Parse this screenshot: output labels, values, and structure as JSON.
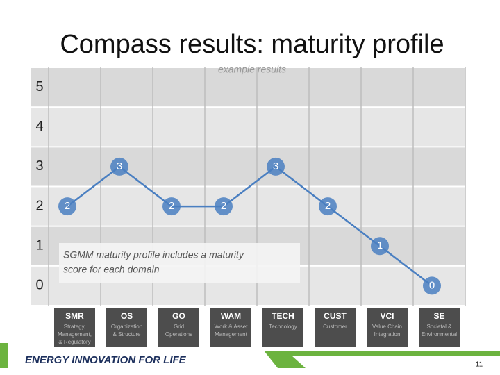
{
  "chart_data": {
    "type": "line",
    "title": "Compass results: maturity profile",
    "subtitle": "example results",
    "categories": [
      "SMR",
      "OS",
      "GO",
      "WAM",
      "TECH",
      "CUST",
      "VCI",
      "SE"
    ],
    "category_descriptions": [
      [
        "Strategy,",
        "Management,",
        "& Regulatory"
      ],
      [
        "Organization",
        "& Structure"
      ],
      [
        "Grid",
        "Operations"
      ],
      [
        "Work & Asset",
        "Management"
      ],
      [
        "Technology"
      ],
      [
        "Customer"
      ],
      [
        "Value Chain",
        "Integration"
      ],
      [
        "Societal &",
        "Environmental"
      ]
    ],
    "values": [
      2,
      3,
      2,
      2,
      3,
      2,
      1,
      0
    ],
    "color": "#4a7fc1",
    "ylim": [
      -0.5,
      5.5
    ],
    "yticks": [
      0,
      1,
      2,
      3,
      4,
      5
    ],
    "annotation": [
      "SGMM maturity profile includes a maturity",
      "score for each domain"
    ]
  },
  "footer": {
    "tagline": "ENERGY INNOVATION FOR LIFE",
    "page_number": 11
  }
}
